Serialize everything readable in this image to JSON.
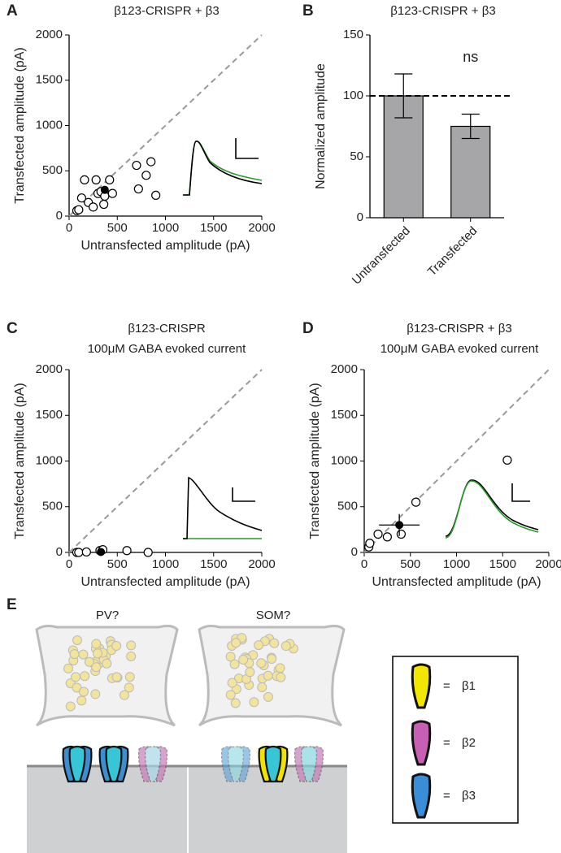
{
  "chart_data": [
    {
      "type": "scatter",
      "label": "A",
      "title": "β123-CRISPR + β3",
      "xlabel": "Untransfected amplitude (pA)",
      "ylabel": "Transfected amplitude (pA)",
      "x": [
        80,
        100,
        130,
        160,
        200,
        250,
        280,
        300,
        330,
        370,
        360,
        420,
        450,
        700,
        720,
        800,
        850,
        900
      ],
      "y": [
        60,
        70,
        200,
        400,
        150,
        100,
        400,
        250,
        270,
        220,
        130,
        400,
        250,
        560,
        300,
        450,
        600,
        230
      ],
      "mean": {
        "x": 370,
        "y": 290
      },
      "xlim": [
        0,
        2000
      ],
      "ylim": [
        0,
        2000
      ],
      "xticks": [
        0,
        500,
        1000,
        1500,
        2000
      ],
      "yticks": [
        0,
        500,
        1000,
        1500,
        2000
      ]
    },
    {
      "type": "bar",
      "label": "B",
      "title": "β123-CRISPR + β3",
      "ylabel": "Normalized amplitude",
      "categories": [
        "Untransfected",
        "Transfected"
      ],
      "values": [
        100,
        75
      ],
      "errors": [
        18,
        10
      ],
      "color": "#a6a6a8",
      "refline": 100,
      "annotation": "ns",
      "ylim": [
        0,
        150
      ],
      "yticks": [
        0,
        50,
        100,
        150
      ]
    },
    {
      "type": "scatter",
      "label": "C",
      "title": "β123-CRISPR",
      "subtitle": "100μM GABA evoked current",
      "xlabel": "Untransfected amplitude (pA)",
      "ylabel": "Transfected amplitude (pA)",
      "x": [
        80,
        100,
        180,
        320,
        350,
        600,
        820
      ],
      "y": [
        0,
        0,
        5,
        20,
        30,
        20,
        0
      ],
      "mean": {
        "x": 330,
        "y": 5
      },
      "xlim": [
        0,
        2000
      ],
      "ylim": [
        0,
        2000
      ],
      "xticks": [
        0,
        500,
        1000,
        1500,
        2000
      ],
      "yticks": [
        0,
        500,
        1000,
        1500,
        2000
      ]
    },
    {
      "type": "scatter",
      "label": "D",
      "title": "β123-CRISPR + β3",
      "subtitle": "100μM GABA evoked current",
      "xlabel": "Untransfected amplitude (pA)",
      "ylabel": "Transfected amplitude (pA)",
      "x": [
        50,
        60,
        150,
        250,
        400,
        560,
        1550
      ],
      "y": [
        60,
        100,
        200,
        170,
        200,
        550,
        1010
      ],
      "mean": {
        "x": 380,
        "y": 300,
        "xerr": 220,
        "yerr": 120
      },
      "xlim": [
        0,
        2000
      ],
      "ylim": [
        0,
        2000
      ],
      "xticks": [
        0,
        500,
        1000,
        1500,
        2000
      ],
      "yticks": [
        0,
        500,
        1000,
        1500,
        2000
      ]
    }
  ],
  "diagram": {
    "label": "E",
    "groups": [
      "PV?",
      "SOM?"
    ],
    "equals": "=",
    "legend": [
      "β1",
      "β2",
      "β3"
    ]
  }
}
